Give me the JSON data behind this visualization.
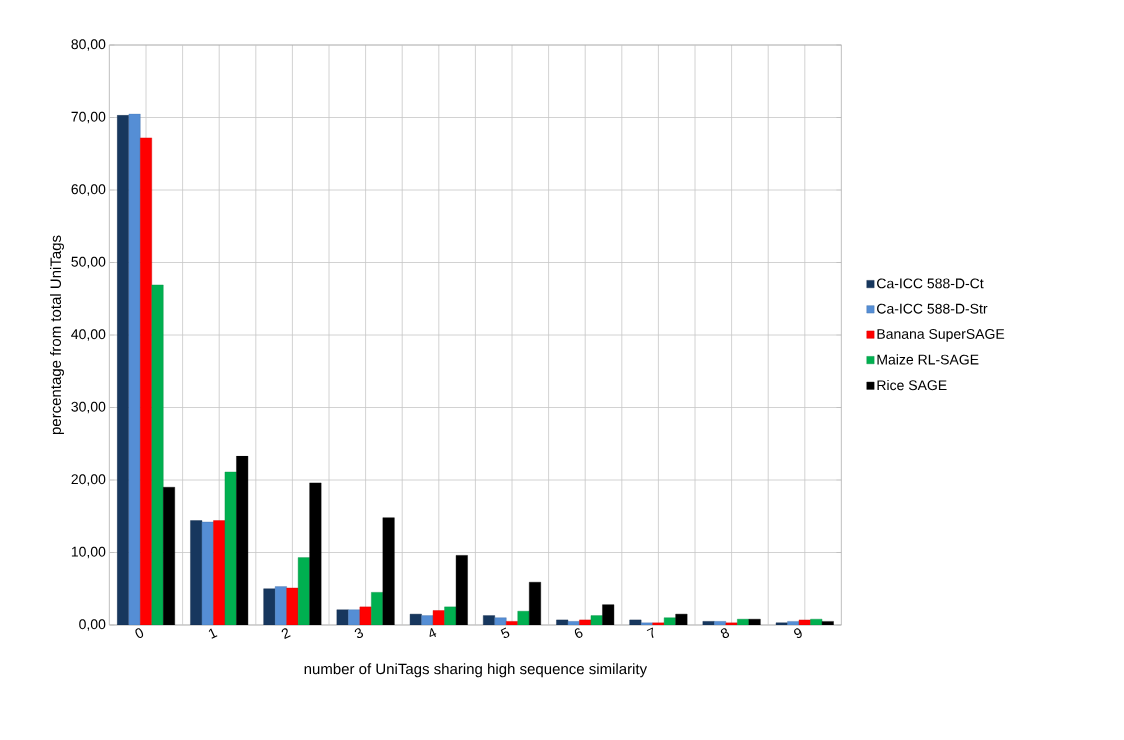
{
  "chart_data": {
    "type": "bar",
    "xlabel": "number of UniTags sharing high sequence similarity",
    "ylabel": "percentage from total UniTags",
    "categories": [
      "0",
      "1",
      "2",
      "3",
      "4",
      "5",
      "6",
      "7",
      "8",
      "9"
    ],
    "series": [
      {
        "name": "Ca-ICC 588-D-Ct",
        "color": "#17375e",
        "values": [
          70.3,
          14.4,
          5.0,
          2.1,
          1.5,
          1.3,
          0.7,
          0.7,
          0.5,
          0.3
        ]
      },
      {
        "name": "Ca-ICC 588-D-Str",
        "color": "#558ed5",
        "values": [
          70.5,
          14.2,
          5.3,
          2.1,
          1.3,
          1.0,
          0.5,
          0.3,
          0.5,
          0.5
        ]
      },
      {
        "name": "Banana SuperSAGE",
        "color": "#ff0000",
        "values": [
          67.2,
          14.4,
          5.1,
          2.5,
          2.0,
          0.5,
          0.7,
          0.3,
          0.3,
          0.7
        ]
      },
      {
        "name": "Maize RL-SAGE",
        "color": "#00b050",
        "values": [
          46.9,
          21.1,
          9.3,
          4.5,
          2.5,
          1.9,
          1.3,
          1.0,
          0.8,
          0.8
        ]
      },
      {
        "name": "Rice SAGE",
        "color": "#000000",
        "values": [
          19.0,
          23.3,
          19.6,
          14.8,
          9.6,
          5.9,
          2.8,
          1.5,
          0.8,
          0.5
        ]
      }
    ],
    "ylim": [
      0,
      80
    ],
    "yticks": [
      {
        "value": 0,
        "label": "0,00"
      },
      {
        "value": 10,
        "label": "10,00"
      },
      {
        "value": 20,
        "label": "20,00"
      },
      {
        "value": 30,
        "label": "30,00"
      },
      {
        "value": 40,
        "label": "40,00"
      },
      {
        "value": 50,
        "label": "50,00"
      },
      {
        "value": 60,
        "label": "60,00"
      },
      {
        "value": 70,
        "label": "70,00"
      },
      {
        "value": 80,
        "label": "80,00"
      }
    ],
    "grid": true,
    "legend": "right"
  }
}
